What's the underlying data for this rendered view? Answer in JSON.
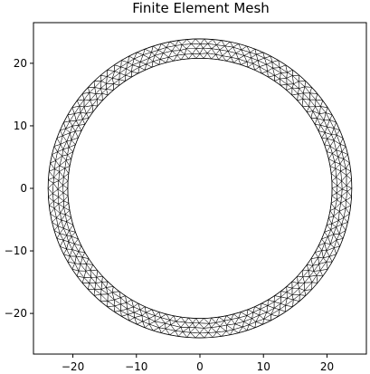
{
  "chart_data": {
    "type": "mesh",
    "title": "Finite Element Mesh",
    "xlabel": "",
    "ylabel": "",
    "xlim": [
      -26.2,
      26.2
    ],
    "ylim": [
      -26.5,
      26.5
    ],
    "x_ticks": [
      -20,
      -10,
      0,
      10,
      20
    ],
    "y_ticks": [
      20,
      10,
      0,
      -10,
      -20
    ],
    "x_tick_labels": [
      "−20",
      "−10",
      "0",
      "10",
      "20"
    ],
    "y_tick_labels": [
      "20",
      "10",
      "0",
      "−10",
      "−20"
    ],
    "mesh": {
      "shape": "annulus",
      "center": [
        0,
        0
      ],
      "inner_radius": 20.8,
      "outer_radius": 23.9,
      "element_type": "triangle",
      "radial_layers": 4,
      "segments_around": 110
    },
    "grid": false,
    "line_color": "#000000"
  }
}
